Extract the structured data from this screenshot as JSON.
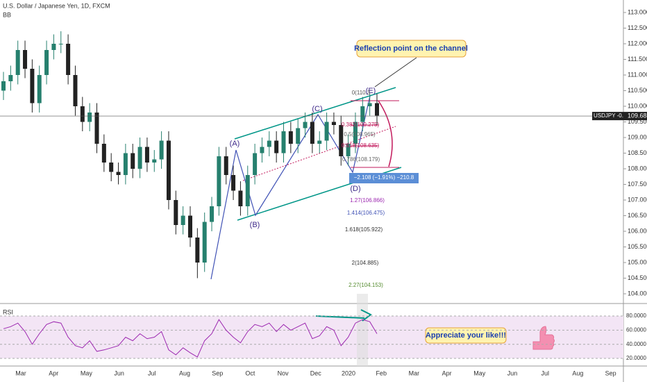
{
  "chart_data": [
    {
      "type": "candlestick",
      "title": "U.S. Dollar / Japanese Yen, 1D, FXCM",
      "indicator": "BB",
      "x_labels": [
        "Mar",
        "Apr",
        "May",
        "Jun",
        "Jul",
        "Aug",
        "Sep",
        "Oct",
        "Nov",
        "Dec",
        "2020",
        "Feb",
        "Mar",
        "Apr",
        "May",
        "Jun",
        "Jul",
        "Aug",
        "Sep"
      ],
      "open": [
        110.5,
        110.8,
        111.0,
        111.8,
        111.2,
        110.1,
        111.0,
        111.8,
        112.0,
        112.0,
        111.0,
        110.0,
        109.5,
        109.8,
        108.8,
        108.2,
        107.9,
        107.8,
        108.5,
        108.0,
        108.7,
        108.2,
        108.3,
        108.9,
        107.0,
        106.2,
        106.5,
        105.8,
        105.0,
        106.3,
        106.8,
        108.4,
        107.8,
        107.3,
        106.8,
        107.8,
        108.5,
        108.7,
        108.9,
        108.5,
        109.2,
        108.8,
        109.3,
        109.5,
        108.8,
        108.9,
        109.5,
        109.4,
        108.4,
        108.8,
        109.5,
        110.0,
        110.1
      ],
      "high": [
        111.1,
        111.3,
        112.1,
        112.1,
        111.5,
        111.3,
        112.1,
        112.3,
        112.4,
        112.3,
        111.3,
        110.3,
        110.1,
        110.1,
        109.1,
        108.5,
        108.2,
        108.8,
        108.8,
        109.0,
        109.0,
        108.6,
        109.2,
        109.2,
        107.3,
        106.8,
        106.8,
        106.1,
        106.6,
        107.1,
        108.7,
        108.7,
        108.1,
        107.6,
        108.1,
        108.8,
        109.0,
        109.2,
        109.2,
        109.5,
        109.5,
        109.6,
        109.8,
        109.8,
        109.2,
        109.8,
        109.8,
        109.7,
        109.1,
        109.8,
        110.3,
        110.4,
        110.4
      ],
      "low": [
        110.2,
        110.5,
        110.7,
        110.9,
        109.8,
        109.8,
        110.7,
        111.5,
        111.7,
        110.7,
        109.7,
        109.2,
        109.2,
        108.5,
        107.9,
        107.6,
        107.5,
        107.5,
        107.7,
        107.7,
        107.9,
        107.9,
        108.0,
        106.7,
        105.9,
        105.9,
        105.5,
        104.5,
        104.7,
        106.0,
        106.5,
        107.5,
        107.0,
        106.5,
        106.5,
        107.5,
        108.2,
        108.4,
        108.2,
        108.2,
        108.5,
        108.5,
        109.0,
        108.5,
        108.5,
        108.6,
        109.1,
        108.1,
        108.1,
        108.5,
        109.2,
        109.7,
        109.4
      ],
      "close": [
        110.8,
        111.0,
        111.8,
        111.2,
        110.1,
        111.0,
        111.8,
        112.0,
        112.0,
        111.0,
        110.0,
        109.5,
        109.8,
        108.8,
        108.2,
        107.9,
        107.8,
        108.5,
        108.0,
        108.7,
        108.2,
        108.3,
        108.9,
        107.0,
        106.2,
        106.5,
        105.8,
        105.0,
        106.3,
        106.8,
        108.4,
        107.8,
        107.3,
        106.8,
        107.8,
        108.5,
        108.7,
        108.9,
        108.5,
        109.2,
        108.8,
        109.3,
        109.5,
        108.8,
        108.9,
        109.5,
        109.4,
        108.4,
        108.8,
        109.5,
        110.0,
        110.1,
        109.7
      ],
      "up_color": "#26806e",
      "down_color": "#222222",
      "ylim": [
        103.8,
        113.4
      ],
      "yticks": [
        {
          "value": 104,
          "label": "104.000"
        },
        {
          "value": 104.5,
          "label": "104.500"
        },
        {
          "value": 105,
          "label": "105.000"
        },
        {
          "value": 105.5,
          "label": "105.500"
        },
        {
          "value": 106,
          "label": "106.000"
        },
        {
          "value": 106.5,
          "label": "106.500"
        },
        {
          "value": 107,
          "label": "107.000"
        },
        {
          "value": 107.5,
          "label": "107.500"
        },
        {
          "value": 108,
          "label": "108.000"
        },
        {
          "value": 108.5,
          "label": "108.500"
        },
        {
          "value": 109,
          "label": "109.000"
        },
        {
          "value": 109.5,
          "label": "109.500"
        },
        {
          "value": 110,
          "label": "110.000"
        },
        {
          "value": 110.5,
          "label": "110.500"
        },
        {
          "value": 111,
          "label": "111.000"
        },
        {
          "value": 111.5,
          "label": "111.500"
        },
        {
          "value": 112,
          "label": "112.000"
        },
        {
          "value": 112.5,
          "label": "112.500"
        },
        {
          "value": 113,
          "label": "113.000"
        }
      ],
      "current_price": {
        "label": "USDJPY -0.71%",
        "value": 109.687
      },
      "annotations": [
        "Reflection point on the channel",
        "Appreciate your like!!!",
        "(A)",
        "(B)",
        "(C)",
        "(D)",
        "(E)",
        "0(110.3",
        "0.382(109.275)",
        "0.5(108.965)",
        "0.618(108.635)",
        "0.786(108.179)",
        "−2.108 (−1.91%) −210.8",
        "1.27(106.866)",
        "1.414(106.475)",
        "1.618(105.922)",
        "2(104.885)",
        "2.27(104.153)"
      ]
    },
    {
      "type": "line",
      "title": "RSI",
      "color": "#9c27b0",
      "values": [
        62,
        65,
        70,
        58,
        40,
        55,
        68,
        72,
        70,
        50,
        38,
        35,
        45,
        30,
        32,
        35,
        38,
        50,
        45,
        55,
        48,
        50,
        58,
        32,
        25,
        35,
        28,
        22,
        45,
        55,
        75,
        60,
        50,
        42,
        58,
        68,
        65,
        70,
        58,
        68,
        60,
        65,
        70,
        48,
        52,
        65,
        60,
        38,
        50,
        70,
        75,
        72,
        55
      ],
      "ylim": [
        9.2,
        94.8
      ],
      "yticks": [
        {
          "value": 20,
          "label": "20.0000"
        },
        {
          "value": 40,
          "label": "40.0000"
        },
        {
          "value": 60,
          "label": "60.0000"
        },
        {
          "value": 80,
          "label": "80.0000"
        }
      ]
    }
  ]
}
